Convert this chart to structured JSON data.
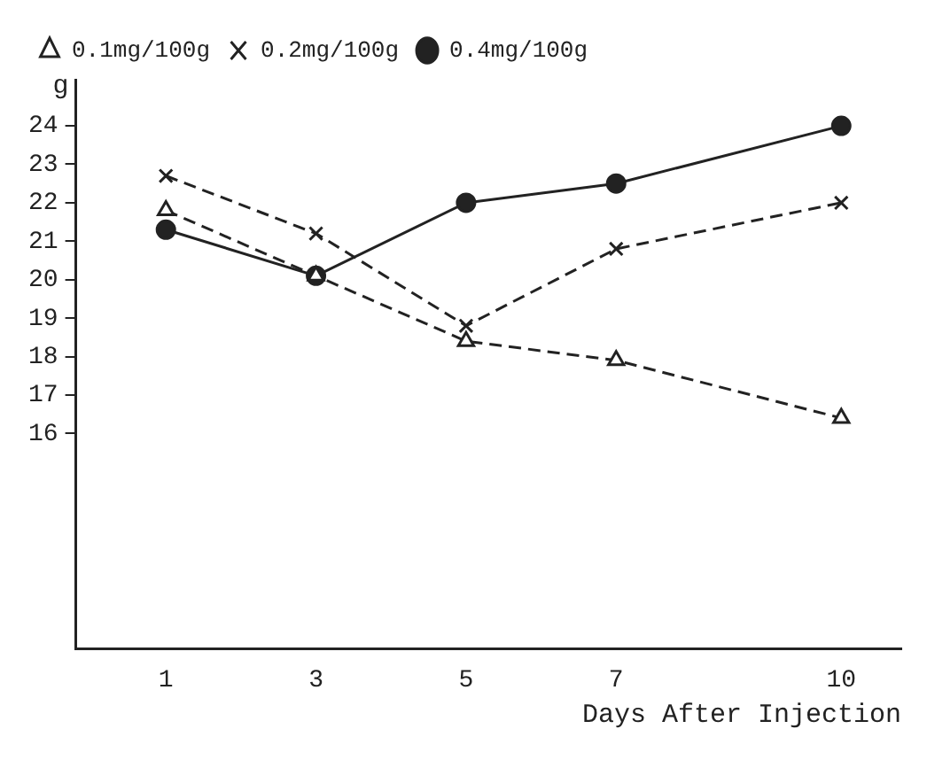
{
  "chart_data": {
    "type": "line",
    "xlabel": "Days After Injection",
    "ylabel": "g",
    "x": [
      1,
      3,
      5,
      7,
      10
    ],
    "xlim": [
      -0.2,
      10.8
    ],
    "xticks": [
      1,
      3,
      5,
      7,
      10
    ],
    "ylim": [
      10.4,
      25.2
    ],
    "yticks": [
      16,
      17,
      18,
      19,
      20,
      21,
      22,
      23,
      24
    ],
    "grid": false,
    "legend": "top left",
    "series": [
      {
        "name": "0.1mg/100g",
        "color": "#222222",
        "values": [
          21.8,
          20.1,
          18.4,
          17.9,
          16.4
        ],
        "marker": "triangle",
        "line_style": "dashed"
      },
      {
        "name": "0.2mg/100g",
        "color": "#222222",
        "values": [
          22.7,
          21.2,
          18.8,
          20.8,
          22.0
        ],
        "marker": "cross",
        "line_style": "dashed"
      },
      {
        "name": "0.4mg/100g",
        "color": "#222222",
        "values": [
          21.3,
          20.1,
          22.0,
          22.5,
          24.0
        ],
        "marker": "circle",
        "line_style": "solid"
      }
    ]
  }
}
